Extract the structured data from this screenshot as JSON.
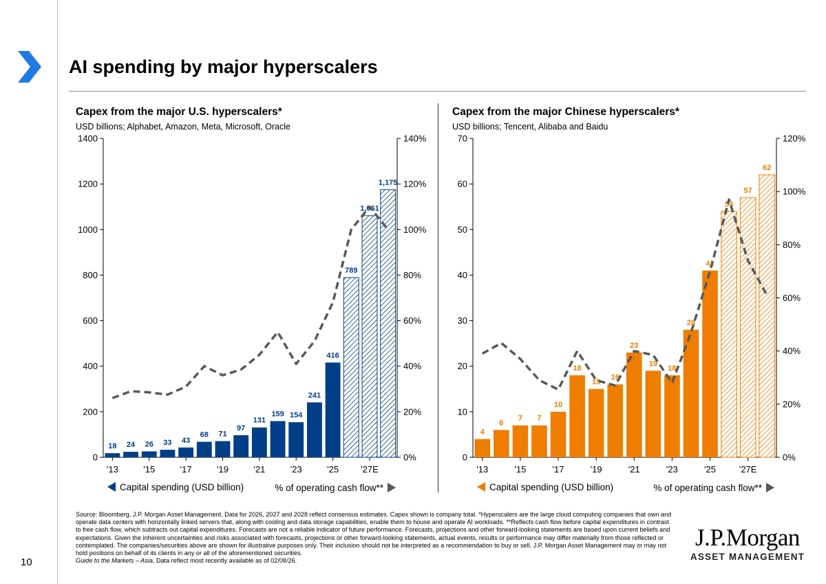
{
  "page": {
    "title": "AI spending by major hyperscalers",
    "page_number": "10",
    "logo_main": "J.P.Morgan",
    "logo_sub": "ASSET MANAGEMENT",
    "footnote": "Source: Bloomberg, J.P. Morgan Asset Management. Data for 2026, 2027 and 2028 reflect consensus estimates. Capex shown is company total. *Hyperscalers are the large cloud computing companies that own and operate data centers with horizontally linked servers that, along with cooling and data storage capabilities, enable them to house and operate AI workloads. **Reflects cash flow before capital expenditures in contrast to free cash flow, which subtracts out capital expenditures. Forecasts are not a reliable indicator of future performance. Forecasts, projections and other forward-looking statements are based upon current beliefs and expectations. Given the inherent uncertainties and risks associated with forecasts, projections or other forward-looking statements, actual events, results or performance may differ materially from those reflected or contemplated. The companies/securities above are shown for illustrative purposes only. Their inclusion should not be interpreted as a recommendation to buy or sell. J.P. Morgan Asset Management may or may not hold positions on behalf of its clients in any or all of the aforementioned securities.",
    "footnote_italic": "Guide to the Markets – Asia.",
    "footnote_tail": "Data reflect most recently available as of 02/08/26.",
    "colors": {
      "accent": "#1e7be6",
      "us": "#003f87",
      "china": "#ee7d00",
      "line": "#595959"
    }
  },
  "chart_data": [
    {
      "type": "bar",
      "title": "Capex from the major U.S. hyperscalers*",
      "subtitle": "USD billions; Alphabet, Amazon, Meta, Microsoft, Oracle",
      "x": [
        "2013",
        "2014",
        "2015",
        "2016",
        "2017",
        "2018",
        "2019",
        "2020",
        "2021",
        "2022",
        "2023",
        "2024",
        "2025",
        "2026",
        "2027",
        "2028"
      ],
      "x_tick_labels": [
        "'13",
        "'15",
        "'17",
        "'19",
        "'21",
        "'23",
        "'25",
        "'27E"
      ],
      "x_tick_years": [
        "2013",
        "2015",
        "2017",
        "2019",
        "2021",
        "2023",
        "2025",
        "2027"
      ],
      "series": [
        {
          "name": "Capital spending (USD billion)",
          "axis": "left",
          "values": [
            18,
            24,
            26,
            33,
            43,
            68,
            71,
            97,
            131,
            159,
            154,
            241,
            416,
            789,
            1061,
            1175
          ],
          "labels": [
            "18",
            "24",
            "26",
            "33",
            "43",
            "68",
            "71",
            "97",
            "131",
            "159",
            "154",
            "241",
            "416",
            "789",
            "1,061",
            "1,175"
          ],
          "estimate_from": "2026"
        },
        {
          "name": "% of operating cash flow**",
          "axis": "right",
          "type": "line",
          "values": [
            26,
            29,
            28.5,
            27.5,
            31,
            40,
            36,
            38.5,
            45,
            55,
            41,
            51,
            68,
            100,
            110,
            100
          ]
        }
      ],
      "ylim": [
        0,
        1400
      ],
      "y_ticks": [
        "0",
        "200",
        "400",
        "600",
        "800",
        "1000",
        "1200",
        "1400"
      ],
      "y2lim": [
        0,
        140
      ],
      "y2_ticks": [
        "0%",
        "20%",
        "40%",
        "60%",
        "80%",
        "100%",
        "120%",
        "140%"
      ],
      "legend_left": "Capital spending (USD billion)",
      "legend_right": "% of operating cash flow**",
      "legend_position": "bottom",
      "grid": false
    },
    {
      "type": "bar",
      "title": "Capex from the major Chinese hyperscalers*",
      "subtitle": "USD billions; Tencent, Alibaba and Baidu",
      "x": [
        "2013",
        "2014",
        "2015",
        "2016",
        "2017",
        "2018",
        "2019",
        "2020",
        "2021",
        "2022",
        "2023",
        "2024",
        "2025",
        "2026",
        "2027",
        "2028"
      ],
      "x_tick_labels": [
        "'13",
        "'15",
        "'17",
        "'19",
        "'21",
        "'23",
        "'25",
        "'27E"
      ],
      "x_tick_years": [
        "2013",
        "2015",
        "2017",
        "2019",
        "2021",
        "2023",
        "2025",
        "2027"
      ],
      "series": [
        {
          "name": "Capital spending (USD billion)",
          "axis": "left",
          "values": [
            4,
            6,
            7,
            7,
            10,
            18,
            15,
            16,
            23,
            19,
            18,
            28,
            41,
            54,
            57,
            62
          ],
          "labels": [
            "4",
            "6",
            "7",
            "7",
            "10",
            "18",
            "15",
            "16",
            "23",
            "19",
            "18",
            "28",
            "41",
            "54",
            "57",
            "62"
          ],
          "estimate_from": "2026"
        },
        {
          "name": "% of operating cash flow**",
          "axis": "right",
          "type": "line",
          "values": [
            39,
            43,
            37,
            29,
            25.5,
            40,
            29,
            27,
            40,
            38.5,
            28,
            47,
            70,
            97,
            74,
            61
          ]
        }
      ],
      "ylim": [
        0,
        70
      ],
      "y_ticks": [
        "0",
        "10",
        "20",
        "30",
        "40",
        "50",
        "60",
        "70"
      ],
      "y2lim": [
        0,
        120
      ],
      "y2_ticks": [
        "0%",
        "20%",
        "40%",
        "60%",
        "80%",
        "100%",
        "120%"
      ],
      "legend_left": "Capital spending (USD billion)",
      "legend_right": "% of operating cash flow**",
      "legend_position": "bottom",
      "grid": false
    }
  ]
}
